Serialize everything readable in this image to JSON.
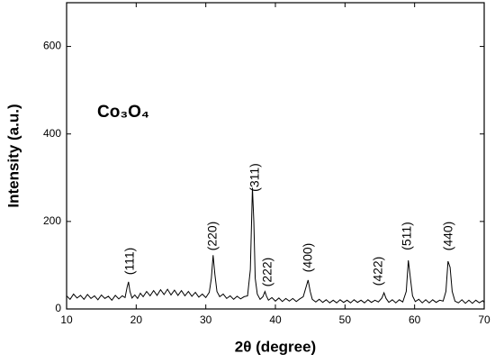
{
  "chart_data": {
    "type": "line",
    "xlabel": "2θ (degree)",
    "ylabel": "Intensity (a.u.)",
    "sample_label": "Co₃O₄",
    "annotations": [
      "(111)",
      "(220)",
      "(311)",
      "(222)",
      "(400)",
      "(422)",
      "(511)",
      "(440)"
    ],
    "color": "#000000",
    "xlim": [
      10,
      70
    ],
    "xticks": [
      10,
      20,
      30,
      40,
      50,
      60,
      70
    ],
    "ylim": [
      0,
      700
    ],
    "yticks": [
      0,
      200,
      400,
      600
    ],
    "x": [
      10,
      10.5,
      11,
      11.5,
      12,
      12.5,
      13,
      13.5,
      14,
      14.5,
      15,
      15.5,
      16,
      16.5,
      17,
      17.5,
      18,
      18.4,
      18.7,
      18.9,
      19.1,
      19.4,
      19.8,
      20.2,
      20.6,
      21,
      21.5,
      22,
      22.5,
      23,
      23.5,
      24,
      24.5,
      25,
      25.5,
      26,
      26.5,
      27,
      27.5,
      28,
      28.5,
      29,
      29.5,
      30,
      30.5,
      30.8,
      31.05,
      31.3,
      31.6,
      32,
      32.5,
      33,
      33.5,
      34,
      34.5,
      35,
      35.5,
      36,
      36.4,
      36.7,
      36.9,
      37.1,
      37.4,
      37.8,
      38.2,
      38.5,
      38.7,
      39,
      39.5,
      40,
      40.5,
      41,
      41.5,
      42,
      42.5,
      43,
      43.5,
      44,
      44.4,
      44.7,
      45,
      45.3,
      45.8,
      46.3,
      46.8,
      47.3,
      47.8,
      48.3,
      48.8,
      49.3,
      49.8,
      50.3,
      50.8,
      51.3,
      51.8,
      52.3,
      52.8,
      53.3,
      53.8,
      54.3,
      54.8,
      55.3,
      55.6,
      55.9,
      56.3,
      56.8,
      57.3,
      57.8,
      58.3,
      58.8,
      59.1,
      59.4,
      59.7,
      60.1,
      60.6,
      61.1,
      61.6,
      62.1,
      62.6,
      63.1,
      63.6,
      64.1,
      64.5,
      64.8,
      65.1,
      65.4,
      65.8,
      66.3,
      66.8,
      67.3,
      67.8,
      68.3,
      68.8,
      69.3,
      69.8,
      70
    ],
    "values": [
      30,
      22,
      34,
      25,
      31,
      22,
      33,
      24,
      30,
      21,
      32,
      24,
      29,
      20,
      31,
      23,
      30,
      26,
      50,
      62,
      40,
      25,
      32,
      24,
      36,
      28,
      40,
      30,
      42,
      31,
      44,
      33,
      45,
      32,
      43,
      31,
      42,
      30,
      40,
      29,
      38,
      27,
      34,
      26,
      38,
      70,
      123,
      80,
      40,
      28,
      34,
      24,
      30,
      22,
      29,
      23,
      28,
      30,
      90,
      277,
      200,
      70,
      34,
      22,
      28,
      40,
      30,
      20,
      26,
      18,
      25,
      17,
      24,
      18,
      24,
      17,
      23,
      28,
      50,
      66,
      40,
      22,
      16,
      22,
      15,
      21,
      14,
      20,
      14,
      21,
      15,
      20,
      14,
      21,
      15,
      20,
      14,
      21,
      15,
      20,
      16,
      25,
      37,
      24,
      15,
      21,
      14,
      21,
      16,
      40,
      111,
      70,
      30,
      17,
      22,
      14,
      21,
      14,
      21,
      15,
      20,
      18,
      40,
      109,
      95,
      40,
      18,
      14,
      21,
      13,
      20,
      13,
      20,
      14,
      19,
      15
    ]
  }
}
